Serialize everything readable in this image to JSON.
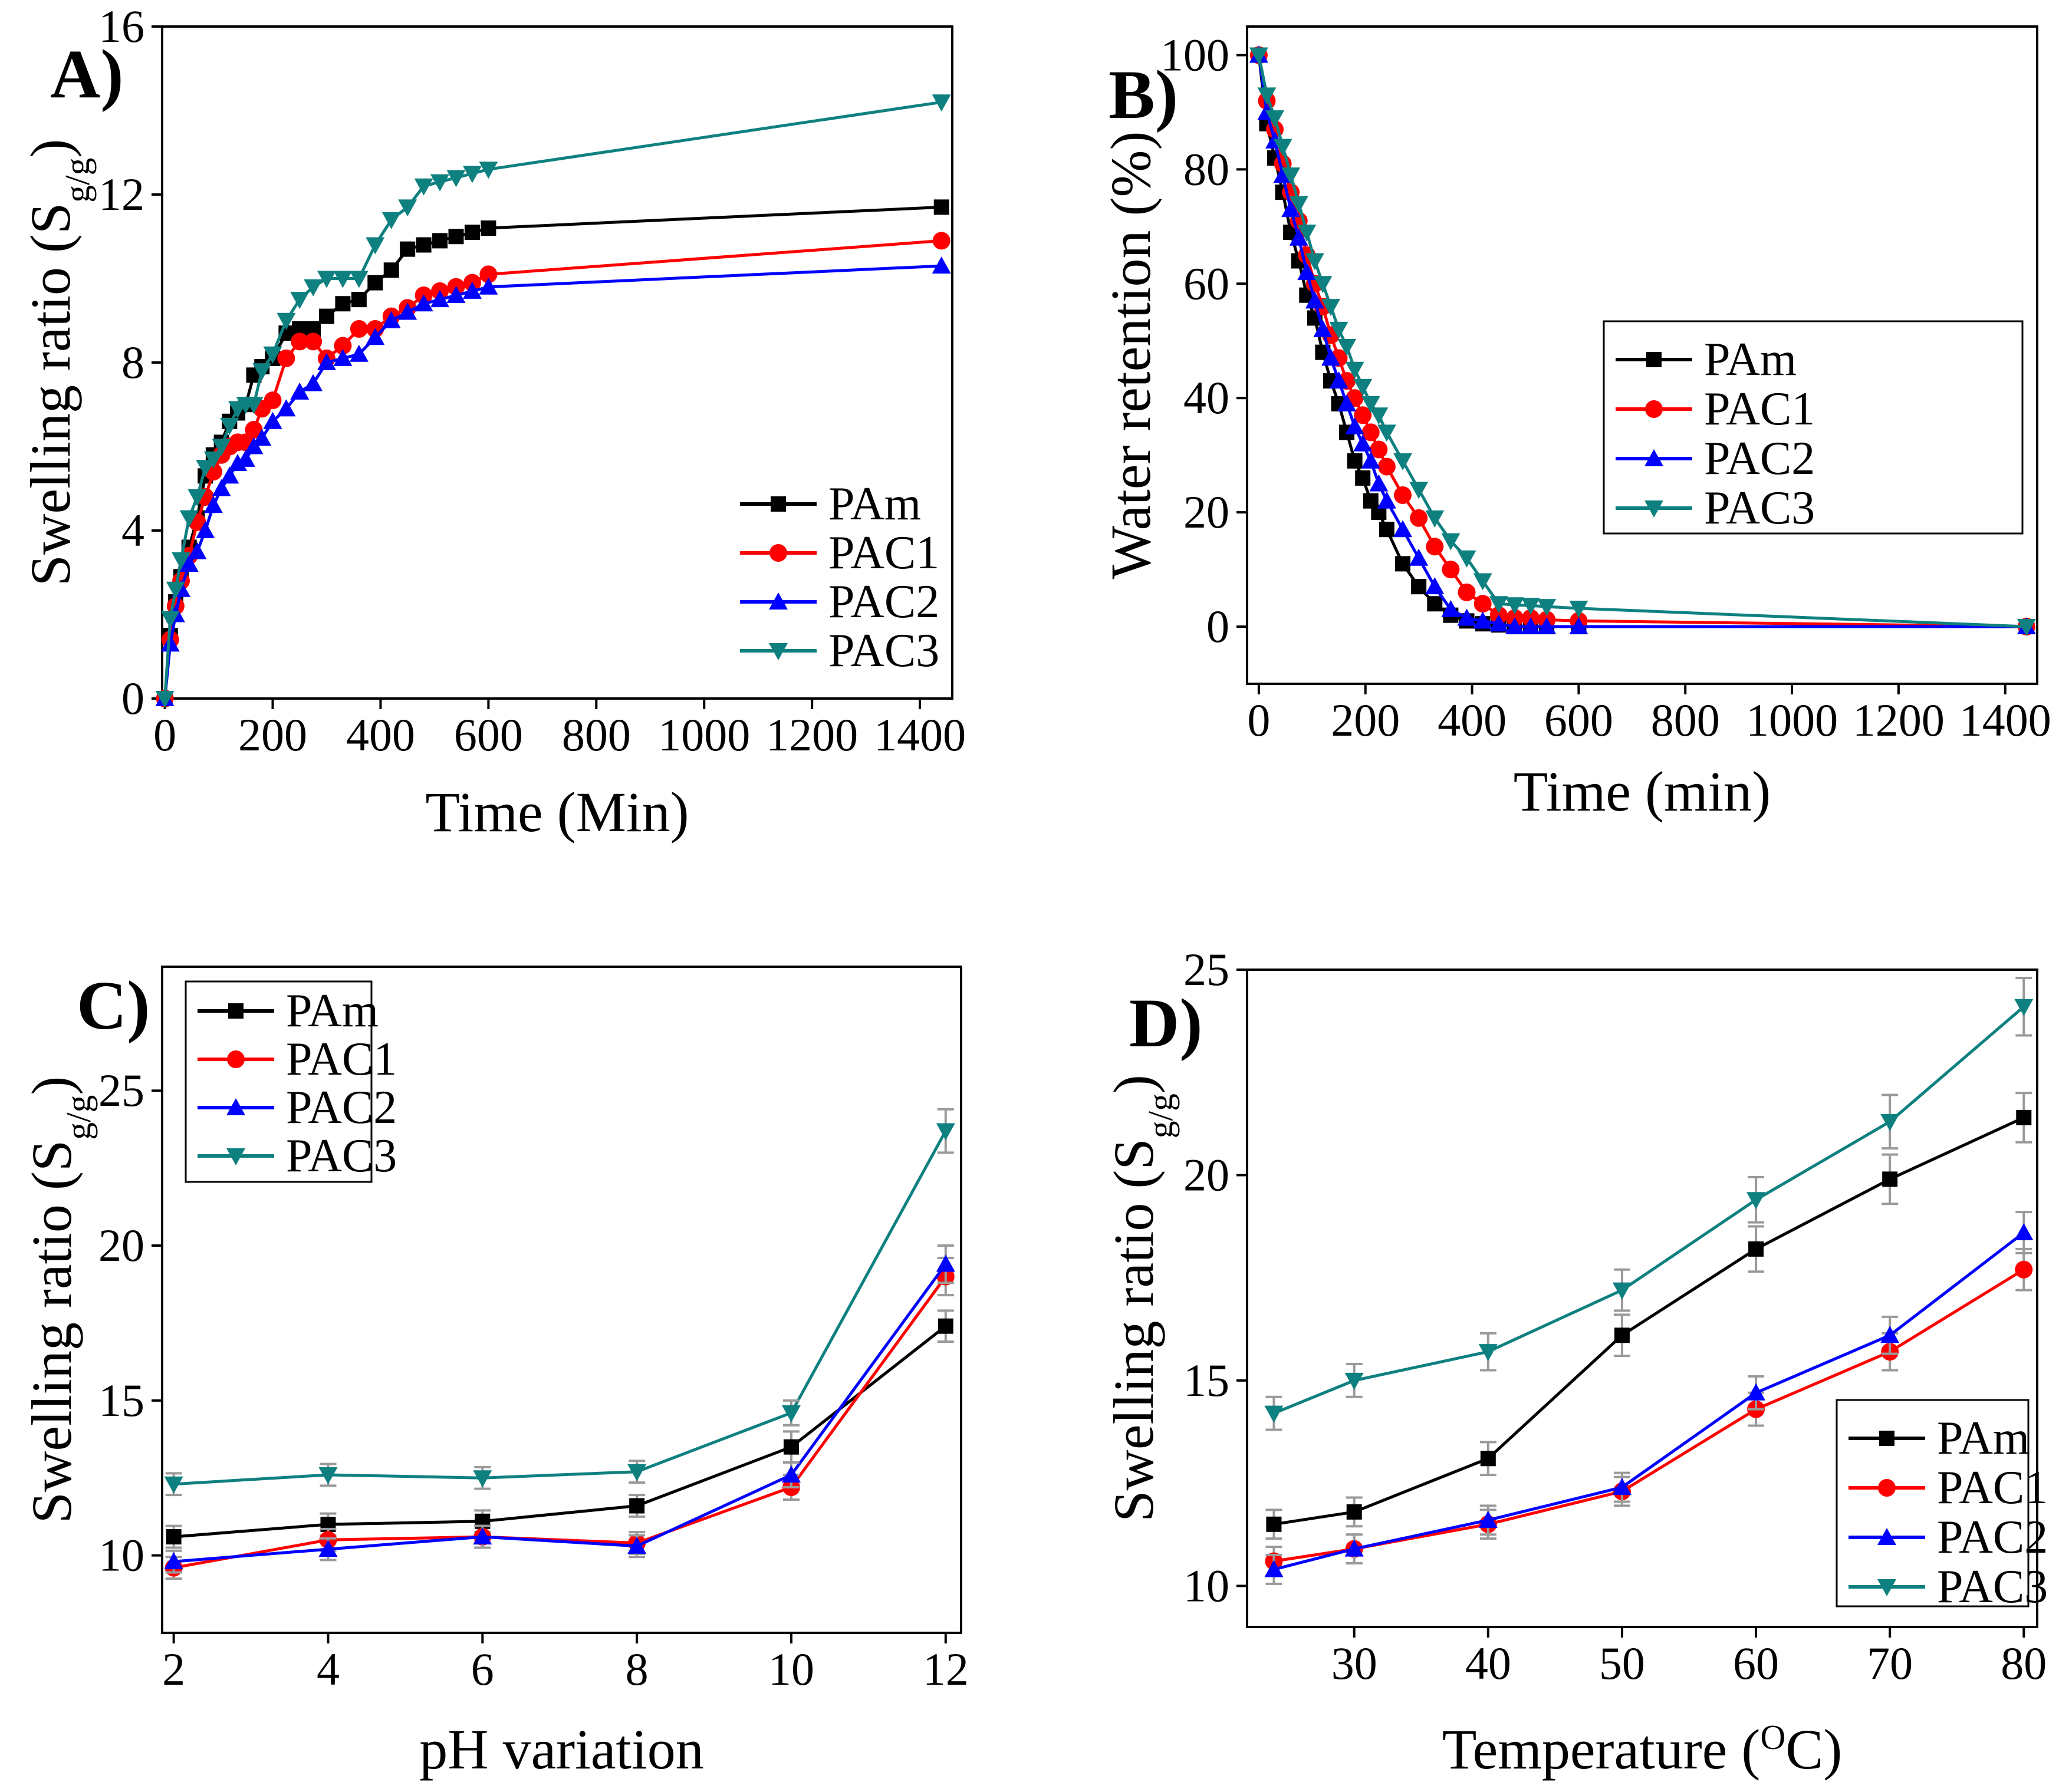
{
  "colors": {
    "PAm": "#000000",
    "PAC1": "#ff0000",
    "PAC2": "#0000ff",
    "PAC3": "#0f8080",
    "error_bar": "#9a9a9a"
  },
  "chart_data": [
    {
      "id": "A",
      "panel_label": "A)",
      "type": "line",
      "xlabel": "Time (Min)",
      "ylabel": {
        "main": "Swelling ratio (S",
        "sub": "g/g",
        "end": ")"
      },
      "xlim": [
        -5,
        1460
      ],
      "ylim": [
        0,
        16
      ],
      "xticks": [
        0,
        200,
        400,
        600,
        800,
        1000,
        1200,
        1400
      ],
      "yticks": [
        0,
        4,
        8,
        12,
        16
      ],
      "legend_position": "bottom-right",
      "series": [
        {
          "name": "PAm",
          "marker": "square",
          "color_key": "PAm",
          "x": [
            0,
            10,
            20,
            30,
            45,
            60,
            75,
            90,
            105,
            120,
            135,
            150,
            165,
            180,
            200,
            225,
            250,
            275,
            300,
            330,
            360,
            390,
            420,
            450,
            480,
            510,
            540,
            570,
            600,
            1440
          ],
          "y": [
            0,
            1.5,
            2.3,
            2.9,
            3.6,
            4.3,
            5.3,
            5.8,
            6.1,
            6.6,
            6.8,
            7.0,
            7.7,
            7.9,
            8.1,
            8.7,
            8.8,
            8.8,
            9.1,
            9.4,
            9.5,
            9.9,
            10.2,
            10.7,
            10.8,
            10.9,
            11.0,
            11.1,
            11.2,
            11.7
          ]
        },
        {
          "name": "PAC1",
          "marker": "circle",
          "color_key": "PAC1",
          "x": [
            0,
            10,
            20,
            30,
            45,
            60,
            75,
            90,
            105,
            120,
            135,
            150,
            165,
            180,
            200,
            225,
            250,
            275,
            300,
            330,
            360,
            390,
            420,
            450,
            480,
            510,
            540,
            570,
            600,
            1440
          ],
          "y": [
            0,
            1.4,
            2.2,
            2.8,
            3.4,
            4.2,
            4.8,
            5.4,
            5.8,
            6.0,
            6.1,
            6.1,
            6.4,
            6.9,
            7.1,
            8.1,
            8.5,
            8.5,
            8.1,
            8.4,
            8.8,
            8.8,
            9.1,
            9.3,
            9.6,
            9.7,
            9.8,
            9.9,
            10.1,
            10.9
          ]
        },
        {
          "name": "PAC2",
          "marker": "triangle-up",
          "color_key": "PAC2",
          "x": [
            0,
            10,
            20,
            30,
            45,
            60,
            75,
            90,
            105,
            120,
            135,
            150,
            165,
            180,
            200,
            225,
            250,
            275,
            300,
            330,
            360,
            390,
            420,
            450,
            480,
            510,
            540,
            570,
            600,
            1440
          ],
          "y": [
            0,
            1.3,
            2.0,
            2.6,
            3.2,
            3.5,
            4.0,
            4.6,
            5.0,
            5.3,
            5.6,
            5.7,
            6.0,
            6.2,
            6.6,
            6.9,
            7.3,
            7.5,
            8.0,
            8.1,
            8.2,
            8.6,
            9.0,
            9.2,
            9.4,
            9.5,
            9.6,
            9.7,
            9.8,
            10.3
          ]
        },
        {
          "name": "PAC3",
          "marker": "triangle-down",
          "color_key": "PAC3",
          "x": [
            0,
            10,
            20,
            30,
            45,
            60,
            75,
            90,
            105,
            120,
            135,
            150,
            165,
            180,
            200,
            225,
            250,
            275,
            300,
            330,
            360,
            390,
            420,
            450,
            480,
            510,
            540,
            570,
            600,
            1440
          ],
          "y": [
            0,
            1.9,
            2.6,
            3.3,
            4.3,
            4.8,
            5.5,
            5.7,
            6.0,
            6.5,
            6.9,
            7.0,
            7.0,
            7.8,
            8.2,
            9.0,
            9.5,
            9.8,
            10.0,
            10.0,
            10.0,
            10.8,
            11.4,
            11.7,
            12.2,
            12.3,
            12.4,
            12.5,
            12.6,
            14.2
          ]
        }
      ]
    },
    {
      "id": "B",
      "panel_label": "B)",
      "type": "line",
      "xlabel": "Time (min)",
      "ylabel": {
        "main": "Water retention (%)",
        "sub": "",
        "end": ""
      },
      "xlim": [
        -22,
        1460
      ],
      "ylim": [
        -10,
        105
      ],
      "xticks": [
        0,
        200,
        400,
        600,
        800,
        1000,
        1200,
        1400
      ],
      "yticks": [
        0,
        20,
        40,
        60,
        80,
        100
      ],
      "legend_position": "center-right",
      "series": [
        {
          "name": "PAm",
          "marker": "square",
          "color_key": "PAm",
          "x": [
            0,
            15,
            30,
            45,
            60,
            75,
            90,
            105,
            120,
            135,
            150,
            165,
            180,
            195,
            210,
            225,
            240,
            270,
            300,
            330,
            360,
            390,
            420,
            450,
            480,
            510,
            540,
            600,
            1440
          ],
          "y": [
            100,
            88,
            82,
            76,
            69,
            64,
            58,
            54,
            48,
            43,
            39,
            34,
            29,
            26,
            22,
            20,
            17,
            11,
            7,
            4,
            2,
            1,
            0.5,
            0.3,
            0,
            0,
            0,
            0,
            0
          ]
        },
        {
          "name": "PAC1",
          "marker": "circle",
          "color_key": "PAC1",
          "x": [
            0,
            15,
            30,
            45,
            60,
            75,
            90,
            105,
            120,
            135,
            150,
            165,
            180,
            195,
            210,
            225,
            240,
            270,
            300,
            330,
            360,
            390,
            420,
            450,
            480,
            510,
            540,
            600,
            1440
          ],
          "y": [
            100,
            92,
            87,
            81,
            76,
            71,
            65,
            60,
            56,
            51,
            47,
            43,
            40,
            37,
            34,
            31,
            28,
            23,
            19,
            14,
            10,
            6,
            4,
            2,
            1.5,
            1.5,
            1.2,
            1,
            0
          ]
        },
        {
          "name": "PAC2",
          "marker": "triangle-up",
          "color_key": "PAC2",
          "x": [
            0,
            15,
            30,
            45,
            60,
            75,
            90,
            105,
            120,
            135,
            150,
            165,
            180,
            195,
            210,
            225,
            240,
            270,
            300,
            330,
            360,
            390,
            420,
            450,
            480,
            510,
            540,
            600,
            1440
          ],
          "y": [
            100,
            90,
            85,
            79,
            73,
            68,
            62,
            57,
            52,
            47,
            43,
            39,
            35,
            32,
            29,
            25,
            22,
            17,
            12,
            7,
            3,
            1.5,
            1,
            0.5,
            0,
            0,
            0,
            0,
            0
          ]
        },
        {
          "name": "PAC3",
          "marker": "triangle-down",
          "color_key": "PAC3",
          "x": [
            0,
            15,
            30,
            45,
            60,
            75,
            90,
            105,
            120,
            135,
            150,
            165,
            180,
            195,
            210,
            225,
            240,
            270,
            300,
            330,
            360,
            390,
            420,
            450,
            480,
            510,
            540,
            600,
            1440
          ],
          "y": [
            100,
            93,
            89,
            84,
            79,
            74,
            69,
            64,
            60,
            56,
            52,
            49,
            45,
            42,
            39,
            37,
            34,
            29,
            24,
            19,
            15,
            12,
            8,
            4,
            3.8,
            3.7,
            3.5,
            3.2,
            0
          ]
        }
      ]
    },
    {
      "id": "C",
      "panel_label": "C)",
      "type": "line",
      "xlabel": "pH variation",
      "ylabel": {
        "main": "Swelling ratio (S",
        "sub": "g/g",
        "end": ")"
      },
      "xlim": [
        1.85,
        12.2
      ],
      "ylim": [
        7.5,
        29
      ],
      "xticks": [
        2,
        4,
        6,
        8,
        10,
        12
      ],
      "yticks": [
        10,
        15,
        20,
        25
      ],
      "legend_position": "top-left",
      "error_bars": true,
      "series": [
        {
          "name": "PAm",
          "marker": "square",
          "color_key": "PAm",
          "x": [
            2,
            4,
            6,
            8,
            10,
            12
          ],
          "y": [
            10.6,
            11.0,
            11.1,
            11.6,
            13.5,
            17.4
          ],
          "err": [
            0.35,
            0.35,
            0.35,
            0.35,
            0.5,
            0.5
          ]
        },
        {
          "name": "PAC1",
          "marker": "circle",
          "color_key": "PAC1",
          "x": [
            2,
            4,
            6,
            8,
            10,
            12
          ],
          "y": [
            9.6,
            10.5,
            10.6,
            10.4,
            12.2,
            19.0
          ],
          "err": [
            0.35,
            0.35,
            0.35,
            0.35,
            0.4,
            0.6
          ]
        },
        {
          "name": "PAC2",
          "marker": "triangle-up",
          "color_key": "PAC2",
          "x": [
            2,
            4,
            6,
            8,
            10,
            12
          ],
          "y": [
            9.8,
            10.2,
            10.6,
            10.3,
            12.6,
            19.4
          ],
          "err": [
            0.35,
            0.35,
            0.35,
            0.35,
            0.4,
            0.6
          ]
        },
        {
          "name": "PAC3",
          "marker": "triangle-down",
          "color_key": "PAC3",
          "x": [
            2,
            4,
            6,
            8,
            10,
            12
          ],
          "y": [
            12.3,
            12.6,
            12.5,
            12.7,
            14.6,
            23.7
          ],
          "err": [
            0.35,
            0.35,
            0.35,
            0.35,
            0.4,
            0.7
          ]
        }
      ]
    },
    {
      "id": "D",
      "panel_label": "D)",
      "type": "line",
      "xlabel": {
        "main": "Temperature (",
        "sup": "O",
        "end": "C)"
      },
      "ylabel": {
        "main": "Swelling ratio (S",
        "sub": "g/g",
        "end": ")"
      },
      "xlim": [
        22,
        81
      ],
      "ylim": [
        9,
        25
      ],
      "xticks": [
        30,
        40,
        50,
        60,
        70,
        80
      ],
      "yticks": [
        10,
        15,
        20,
        25
      ],
      "legend_position": "bottom-right",
      "error_bars": true,
      "series": [
        {
          "name": "PAm",
          "marker": "square",
          "color_key": "PAm",
          "x": [
            24,
            30,
            40,
            50,
            60,
            70,
            80
          ],
          "y": [
            11.5,
            11.8,
            13.1,
            16.1,
            18.2,
            19.9,
            21.4
          ],
          "err": [
            0.35,
            0.35,
            0.4,
            0.5,
            0.55,
            0.6,
            0.6
          ]
        },
        {
          "name": "PAC1",
          "marker": "circle",
          "color_key": "PAC1",
          "x": [
            24,
            30,
            40,
            50,
            60,
            70,
            80
          ],
          "y": [
            10.6,
            10.9,
            11.5,
            12.3,
            14.3,
            15.7,
            17.7
          ],
          "err": [
            0.35,
            0.35,
            0.35,
            0.35,
            0.4,
            0.45,
            0.5
          ]
        },
        {
          "name": "PAC2",
          "marker": "triangle-up",
          "color_key": "PAC2",
          "x": [
            24,
            30,
            40,
            50,
            60,
            70,
            80
          ],
          "y": [
            10.4,
            10.9,
            11.6,
            12.4,
            14.7,
            16.1,
            18.6
          ],
          "err": [
            0.35,
            0.35,
            0.35,
            0.35,
            0.4,
            0.45,
            0.5
          ]
        },
        {
          "name": "PAC3",
          "marker": "triangle-down",
          "color_key": "PAC3",
          "x": [
            24,
            30,
            40,
            50,
            60,
            70,
            80
          ],
          "y": [
            14.2,
            15.0,
            15.7,
            17.2,
            19.4,
            21.3,
            24.1
          ],
          "err": [
            0.4,
            0.4,
            0.45,
            0.5,
            0.55,
            0.65,
            0.7
          ]
        }
      ]
    }
  ]
}
